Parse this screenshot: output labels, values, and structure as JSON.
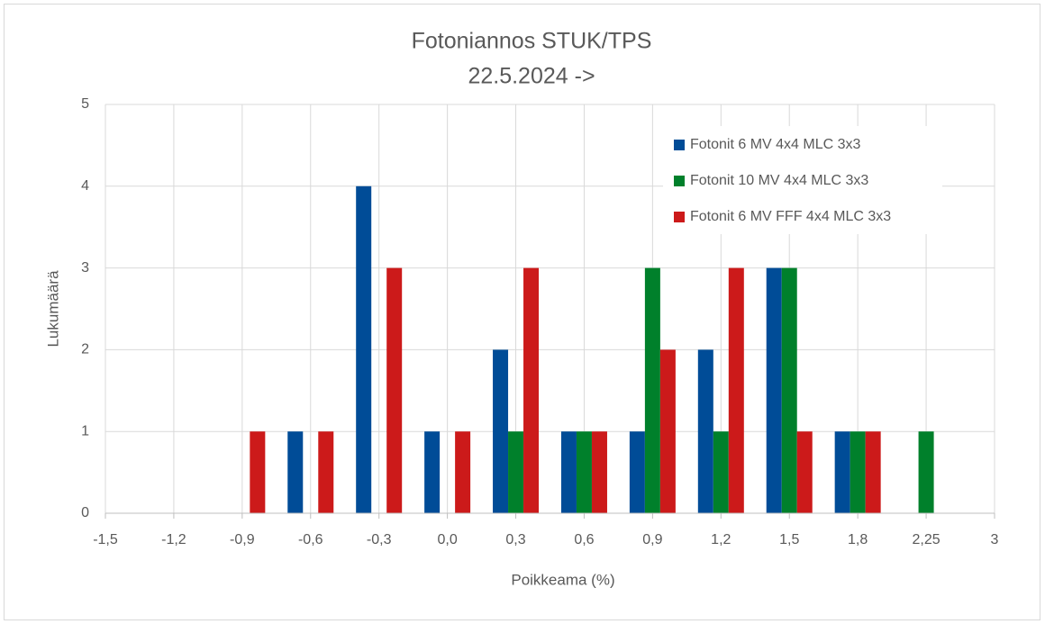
{
  "chart_data": {
    "type": "bar",
    "title": "Fotoniannos STUK/TPS",
    "subtitle": "22.5.2024 ->",
    "x_label": "Poikkeama (%)",
    "y_label": "Lukumäärä",
    "categories": [
      "-1,5",
      "-1,2",
      "-0,9",
      "-0,6",
      "-0,3",
      "0,0",
      "0,3",
      "0,6",
      "0,9",
      "1,2",
      "1,5",
      "1,8",
      "2,25",
      "3"
    ],
    "series": [
      {
        "name": "Fotonit 6 MV 4x4 MLC 3x3",
        "color": "#004c97",
        "values": [
          0,
          0,
          0,
          1,
          4,
          1,
          2,
          1,
          1,
          2,
          3,
          1,
          0,
          0
        ]
      },
      {
        "name": "Fotonit 10 MV 4x4 MLC 3x3",
        "color": "#00802b",
        "values": [
          0,
          0,
          0,
          0,
          0,
          0,
          1,
          1,
          3,
          1,
          3,
          1,
          1,
          0
        ]
      },
      {
        "name": "Fotonit 6 MV FFF 4x4 MLC 3x3",
        "color": "#cc1a1a",
        "values": [
          0,
          0,
          1,
          1,
          3,
          1,
          3,
          1,
          2,
          3,
          1,
          1,
          0,
          0
        ]
      }
    ],
    "ylim": [
      0,
      5
    ],
    "yticks": [
      0,
      1,
      2,
      3,
      4,
      5
    ],
    "grid": true,
    "legend": "top-right"
  }
}
